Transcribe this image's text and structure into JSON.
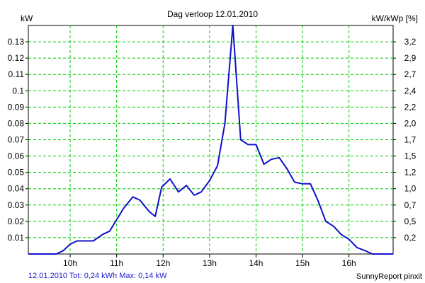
{
  "colors": {
    "background": "#ffffff",
    "grid": "#00cc00",
    "series": "#1010cc",
    "axis": "#000000",
    "footer_text": "#1a1acc"
  },
  "footer": {
    "summary": "12.01.2010 Tot: 0,24 kWh Max: 0,14 kW",
    "credit": "SunnyReport pinxit"
  },
  "chart_data": {
    "type": "line",
    "title": "Dag  verloop 12.01.2010",
    "ylabel_left": "kW",
    "ylabel_right": "kW/kWp [%]",
    "grid": true,
    "x_categories": [
      "10h",
      "11h",
      "12h",
      "13h",
      "14h",
      "15h",
      "16h"
    ],
    "xlim_hours": [
      9.1,
      16.95
    ],
    "ylim": [
      0,
      0.14
    ],
    "yticks_left": [
      "0.01",
      "0.02",
      "0.03",
      "0.04",
      "0.05",
      "0.06",
      "0.07",
      "0.08",
      "0.09",
      "0.1",
      "0.11",
      "0.12",
      "0.13"
    ],
    "yticks_right": [
      "0,2",
      "0,5",
      "0,7",
      "1,0",
      "1,2",
      "1,5",
      "1,7",
      "2,0",
      "2,2",
      "2,4",
      "2,7",
      "2,9",
      "3,2"
    ],
    "series": [
      {
        "points": [
          [
            9.1,
            0
          ],
          [
            9.7,
            0
          ],
          [
            9.85,
            0.002
          ],
          [
            10.0,
            0.006
          ],
          [
            10.15,
            0.008
          ],
          [
            10.5,
            0.008
          ],
          [
            10.7,
            0.012
          ],
          [
            10.85,
            0.014
          ],
          [
            11.0,
            0.021
          ],
          [
            11.15,
            0.028
          ],
          [
            11.35,
            0.035
          ],
          [
            11.5,
            0.033
          ],
          [
            11.7,
            0.026
          ],
          [
            11.83,
            0.023
          ],
          [
            11.97,
            0.041
          ],
          [
            12.15,
            0.046
          ],
          [
            12.33,
            0.038
          ],
          [
            12.5,
            0.042
          ],
          [
            12.67,
            0.036
          ],
          [
            12.82,
            0.038
          ],
          [
            13.0,
            0.045
          ],
          [
            13.17,
            0.054
          ],
          [
            13.33,
            0.08
          ],
          [
            13.5,
            0.14
          ],
          [
            13.67,
            0.07
          ],
          [
            13.83,
            0.067
          ],
          [
            14.0,
            0.067
          ],
          [
            14.17,
            0.055
          ],
          [
            14.33,
            0.058
          ],
          [
            14.5,
            0.059
          ],
          [
            14.67,
            0.052
          ],
          [
            14.83,
            0.044
          ],
          [
            15.0,
            0.043
          ],
          [
            15.17,
            0.043
          ],
          [
            15.33,
            0.033
          ],
          [
            15.5,
            0.02
          ],
          [
            15.67,
            0.017
          ],
          [
            15.83,
            0.012
          ],
          [
            16.0,
            0.009
          ],
          [
            16.17,
            0.004
          ],
          [
            16.35,
            0.002
          ],
          [
            16.5,
            0
          ],
          [
            16.95,
            0
          ]
        ]
      }
    ]
  }
}
